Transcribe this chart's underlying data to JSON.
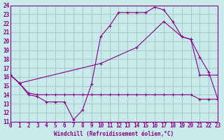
{
  "xlabel": "Windchill (Refroidissement éolien,°C)",
  "bg_color": "#c8eaea",
  "grid_color": "#aacccc",
  "line_color": "#880088",
  "xmin": 0,
  "xmax": 23,
  "ymin": 11,
  "ymax": 24,
  "series1_x": [
    0,
    1,
    2,
    3,
    4,
    5,
    6,
    7,
    8,
    9,
    10,
    11,
    12,
    13,
    14,
    15,
    16,
    17,
    18,
    19,
    20,
    21,
    22,
    23
  ],
  "series1_y": [
    16.2,
    15.3,
    14.0,
    13.8,
    13.2,
    13.2,
    13.2,
    11.2,
    12.3,
    15.2,
    20.5,
    21.7,
    23.2,
    23.2,
    23.2,
    23.2,
    23.8,
    23.5,
    22.2,
    20.5,
    20.2,
    16.2,
    16.2,
    16.2
  ],
  "series2_x": [
    0,
    1,
    2,
    3,
    4,
    5,
    6,
    7,
    8,
    9,
    10,
    11,
    12,
    13,
    14,
    15,
    16,
    17,
    18,
    19,
    20,
    21,
    22,
    23
  ],
  "series2_y": [
    16.2,
    15.3,
    14.2,
    14.0,
    14.0,
    14.0,
    14.0,
    14.0,
    14.0,
    14.0,
    14.0,
    14.0,
    14.0,
    14.0,
    14.0,
    14.0,
    14.0,
    14.0,
    14.0,
    14.0,
    14.0,
    13.5,
    13.5,
    13.5
  ],
  "series3_x": [
    0,
    1,
    10,
    14,
    17,
    19,
    20,
    21,
    22,
    23
  ],
  "series3_y": [
    16.2,
    15.3,
    17.5,
    19.3,
    22.2,
    20.5,
    20.2,
    18.2,
    16.5,
    13.5
  ]
}
